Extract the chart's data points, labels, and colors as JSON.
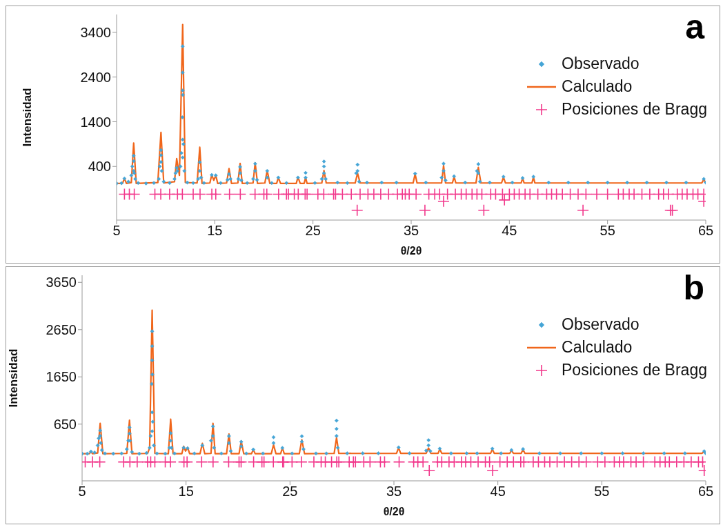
{
  "chart_data": [
    {
      "type": "scatter",
      "xlabel": "θ/2θ",
      "ylabel": "Intensidad",
      "annotations": [
        "a"
      ],
      "xlim": [
        5,
        65
      ],
      "xticks": [
        5,
        15,
        25,
        35,
        45,
        55,
        65
      ],
      "ylim": [
        -800,
        3800
      ],
      "yticks": [
        400,
        1400,
        2400,
        3400
      ],
      "legend": "top right",
      "grid": false,
      "series": [
        {
          "name": "Observado",
          "marker": "diamond",
          "color": "#45a5d6",
          "x": [
            5,
            5.5,
            5.8,
            6.2,
            6.5,
            6.6,
            6.74,
            6.74,
            6.74,
            6.8,
            6.9,
            7.2,
            8,
            8.8,
            9.3,
            9.4,
            9.52,
            9.52,
            9.52,
            9.6,
            9.8,
            10.4,
            10.9,
            11.0,
            11.12,
            11.2,
            11.5,
            11.6,
            11.7,
            11.73,
            11.73,
            11.73,
            11.73,
            11.73,
            11.75,
            11.8,
            11.9,
            12.2,
            12.8,
            13.3,
            13.47,
            13.47,
            13.6,
            13.9,
            14.69,
            15.1,
            15.6,
            16.3,
            16.45,
            16.6,
            17.4,
            17.58,
            17.58,
            17.7,
            18.3,
            18.9,
            19.11,
            19.11,
            19.3,
            20.34,
            20.34,
            20.8,
            21.47,
            22.3,
            23.47,
            24.25,
            24.25,
            25.2,
            25.9,
            26.12,
            26.12,
            26.12,
            26.3,
            27.5,
            28.5,
            29.4,
            29.54,
            29.54,
            29.7,
            30.5,
            32,
            33.5,
            35.4,
            36.5,
            38.1,
            38.3,
            38.3,
            38.5,
            39.37,
            40.5,
            41.7,
            41.84,
            41.84,
            42,
            43,
            44.4,
            45.3,
            46.35,
            47.45,
            49,
            51,
            53,
            55,
            57,
            59,
            61,
            63,
            64.8,
            65
          ],
          "values": [
            20,
            25,
            130,
            60,
            200,
            400,
            638,
            520,
            300,
            250,
            120,
            30,
            20,
            30,
            120,
            400,
            765,
            650,
            500,
            300,
            60,
            30,
            120,
            250,
            368,
            300,
            400,
            700,
            1500,
            3087,
            2500,
            2100,
            1000,
            600,
            2000,
            900,
            300,
            40,
            30,
            120,
            495,
            300,
            150,
            30,
            210,
            200,
            30,
            100,
            230,
            120,
            120,
            390,
            250,
            90,
            30,
            120,
            460,
            300,
            100,
            300,
            150,
            30,
            150,
            30,
            150,
            257,
            150,
            30,
            120,
            511,
            400,
            250,
            120,
            40,
            30,
            250,
            440,
            300,
            60,
            40,
            40,
            40,
            240,
            40,
            150,
            463,
            300,
            90,
            180,
            40,
            300,
            452,
            250,
            60,
            40,
            170,
            40,
            140,
            170,
            40,
            40,
            40,
            40,
            40,
            40,
            40,
            40,
            120,
            40
          ]
        },
        {
          "name": "Calculado",
          "type": "line",
          "marker": "none",
          "color": "#f0661b",
          "x": [
            5,
            5.6,
            5.8,
            6.0,
            6.5,
            6.74,
            7.0,
            9.2,
            9.52,
            9.8,
            10.9,
            11.12,
            11.4,
            11.73,
            12.0,
            13.2,
            13.47,
            13.7,
            14.5,
            14.69,
            14.9,
            15.1,
            15.3,
            16.2,
            16.45,
            16.7,
            17.35,
            17.58,
            17.8,
            18.9,
            19.11,
            19.35,
            20.1,
            20.34,
            20.6,
            21.3,
            21.47,
            21.7,
            23.3,
            23.47,
            23.7,
            24.1,
            24.25,
            24.4,
            25.9,
            26.12,
            26.35,
            29.3,
            29.54,
            29.8,
            35.2,
            35.4,
            35.6,
            38.1,
            38.3,
            38.5,
            39.2,
            39.37,
            39.55,
            41.6,
            41.84,
            42.1,
            44.2,
            44.4,
            44.6,
            46.2,
            46.35,
            46.5,
            47.3,
            47.45,
            47.6,
            64.6,
            64.8,
            65
          ],
          "values": [
            20,
            20,
            130,
            20,
            40,
            924,
            20,
            40,
            1162,
            30,
            60,
            575,
            200,
            3574,
            40,
            30,
            829,
            20,
            30,
            214,
            90,
            200,
            20,
            30,
            352,
            20,
            30,
            469,
            20,
            30,
            480,
            20,
            30,
            310,
            20,
            20,
            150,
            20,
            20,
            160,
            20,
            20,
            150,
            20,
            30,
            310,
            30,
            30,
            250,
            30,
            30,
            230,
            30,
            30,
            420,
            30,
            30,
            170,
            30,
            30,
            380,
            30,
            30,
            160,
            30,
            30,
            140,
            30,
            30,
            160,
            30,
            30,
            110,
            30
          ]
        },
        {
          "name": "Posiciones de Bragg",
          "type": "scatter",
          "marker": "cross",
          "color": "#f2388c",
          "x": [
            5.8,
            6.3,
            6.8,
            8.9,
            9.5,
            10.4,
            11.2,
            11.7,
            12.8,
            13.5,
            14.7,
            15.1,
            16.5,
            17.6,
            19.1,
            20.0,
            20.3,
            21.5,
            22.3,
            22.5,
            23.1,
            23.5,
            24.2,
            24.4,
            25.5,
            26.1,
            27.1,
            27.3,
            28.0,
            28.9,
            29.8,
            30.6,
            31.2,
            31.9,
            32.7,
            33.6,
            34.1,
            34.4,
            34.8,
            35.5,
            36.8,
            37.4,
            37.9,
            38.7,
            39.5,
            40.1,
            40.6,
            41.2,
            41.7,
            42.2,
            43.1,
            43.6,
            44.3,
            45.0,
            45.5,
            46.0,
            46.6,
            47.1,
            47.9,
            48.8,
            49.3,
            49.8,
            50.4,
            51.2,
            52.0,
            52.8,
            53.9,
            55.0,
            56.1,
            56.6,
            57.2,
            57.7,
            58.5,
            59.3,
            60.2,
            60.7,
            61.2,
            62.1,
            62.6,
            63.1,
            63.7,
            64.2,
            64.8,
            29.5,
            36.4,
            38.3,
            42.4,
            44.5,
            52.5,
            61.4,
            61.6,
            64.8
          ],
          "values": [
            -220,
            -220,
            -220,
            -220,
            -220,
            -220,
            -220,
            -220,
            -220,
            -220,
            -220,
            -220,
            -220,
            -220,
            -220,
            -220,
            -220,
            -220,
            -220,
            -220,
            -220,
            -220,
            -220,
            -220,
            -220,
            -220,
            -220,
            -220,
            -220,
            -220,
            -220,
            -220,
            -220,
            -220,
            -220,
            -220,
            -220,
            -220,
            -220,
            -220,
            -220,
            -220,
            -220,
            -220,
            -220,
            -220,
            -220,
            -220,
            -220,
            -220,
            -220,
            -220,
            -220,
            -220,
            -220,
            -220,
            -220,
            -220,
            -220,
            -220,
            -220,
            -220,
            -220,
            -220,
            -220,
            -220,
            -220,
            -220,
            -220,
            -220,
            -220,
            -220,
            -220,
            -220,
            -220,
            -220,
            -220,
            -220,
            -220,
            -220,
            -220,
            -220,
            -220,
            -580,
            -580,
            -380,
            -580,
            -350,
            -580,
            -580,
            -580,
            -380
          ]
        }
      ]
    },
    {
      "type": "scatter",
      "xlabel": "θ/2θ",
      "ylabel": "Intensidad",
      "annotations": [
        "b"
      ],
      "xlim": [
        5,
        65
      ],
      "xticks": [
        5,
        15,
        25,
        35,
        45,
        55,
        65
      ],
      "ylim": [
        -550,
        3800
      ],
      "yticks": [
        650,
        1650,
        2650,
        3650
      ],
      "legend": "top right",
      "grid": false,
      "series": [
        {
          "name": "Observado",
          "marker": "diamond",
          "color": "#45a5d6",
          "x": [
            5,
            5.5,
            5.85,
            6.2,
            6.5,
            6.6,
            6.74,
            6.74,
            6.8,
            6.9,
            7.2,
            8,
            8.8,
            9.3,
            9.45,
            9.56,
            9.56,
            9.6,
            9.8,
            10.5,
            11.2,
            11.5,
            11.6,
            11.7,
            11.74,
            11.74,
            11.74,
            11.74,
            11.74,
            11.76,
            11.8,
            11.9,
            12.2,
            13.0,
            13.4,
            13.52,
            13.52,
            13.6,
            13.9,
            14.77,
            15.15,
            15.8,
            16.57,
            17.4,
            17.59,
            17.59,
            17.7,
            18.4,
            19.13,
            19.13,
            19.3,
            20.31,
            20.31,
            20.8,
            21.47,
            22.4,
            23.42,
            23.42,
            24.27,
            25.2,
            26.14,
            26.14,
            26.3,
            27.5,
            28.5,
            29.48,
            29.48,
            29.48,
            29.6,
            30.5,
            32,
            33.5,
            35.45,
            36.5,
            38.1,
            38.33,
            38.33,
            38.5,
            39.41,
            40.5,
            42,
            43,
            44.47,
            45.3,
            46.31,
            47.42,
            49,
            51,
            53,
            55,
            57,
            59,
            61,
            63,
            64.85,
            65
          ],
          "values": [
            25,
            25,
            70,
            50,
            200,
            350,
            516,
            400,
            250,
            100,
            30,
            25,
            30,
            120,
            300,
            581,
            450,
            300,
            60,
            25,
            40,
            150,
            400,
            1500,
            2615,
            2300,
            2000,
            900,
            500,
            1700,
            700,
            200,
            30,
            25,
            150,
            459,
            300,
            150,
            30,
            150,
            140,
            30,
            200,
            300,
            602,
            400,
            150,
            30,
            398,
            250,
            80,
            277,
            180,
            30,
            113,
            30,
            373,
            250,
            147,
            30,
            394,
            280,
            120,
            30,
            30,
            724,
            550,
            400,
            150,
            33,
            33,
            33,
            158,
            33,
            90,
            311,
            200,
            80,
            131,
            33,
            33,
            33,
            131,
            33,
            100,
            122,
            33,
            33,
            33,
            33,
            33,
            33,
            33,
            33,
            78,
            33
          ]
        },
        {
          "name": "Calculado",
          "type": "line",
          "marker": "none",
          "color": "#f0661b",
          "x": [
            5,
            5.7,
            5.85,
            6.0,
            6.5,
            6.74,
            7.0,
            9.3,
            9.56,
            9.8,
            11.3,
            11.5,
            11.74,
            12.0,
            13.3,
            13.52,
            13.75,
            14.6,
            14.77,
            14.95,
            15.15,
            15.35,
            16.35,
            16.57,
            16.8,
            17.4,
            17.59,
            17.8,
            18.9,
            19.13,
            19.35,
            20.1,
            20.31,
            20.55,
            21.3,
            21.47,
            21.65,
            23.2,
            23.42,
            23.65,
            24.1,
            24.27,
            24.45,
            25.9,
            26.14,
            26.4,
            29.25,
            29.48,
            29.7,
            35.25,
            35.45,
            35.65,
            38.1,
            38.33,
            38.55,
            39.25,
            39.41,
            39.6,
            44.3,
            44.47,
            44.65,
            46.15,
            46.31,
            46.5,
            47.25,
            47.42,
            47.6,
            64.65,
            64.85,
            65
          ],
          "values": [
            25,
            25,
            70,
            25,
            40,
            667,
            25,
            30,
            732,
            25,
            30,
            150,
            3062,
            30,
            25,
            754,
            25,
            25,
            182,
            80,
            156,
            25,
            25,
            243,
            25,
            30,
            667,
            25,
            25,
            442,
            25,
            25,
            290,
            25,
            25,
            113,
            25,
            25,
            212,
            25,
            25,
            147,
            25,
            25,
            320,
            25,
            30,
            364,
            30,
            33,
            150,
            33,
            33,
            145,
            33,
            33,
            120,
            33,
            33,
            120,
            33,
            33,
            95,
            33,
            33,
            115,
            33,
            33,
            75,
            33
          ]
        },
        {
          "name": "Posiciones de Bragg",
          "type": "scatter",
          "marker": "cross",
          "color": "#f2388c",
          "x": [
            5.3,
            6.0,
            6.7,
            9.0,
            9.6,
            10.3,
            11.3,
            11.6,
            12.0,
            13.0,
            13.5,
            14.8,
            15.1,
            16.5,
            17.6,
            19.1,
            20.1,
            20.3,
            21.5,
            22.3,
            22.5,
            23.4,
            24.3,
            24.4,
            25.2,
            26.1,
            27.3,
            28.0,
            28.4,
            29.0,
            29.5,
            29.7,
            30.7,
            31.1,
            31.3,
            32.1,
            32.7,
            33.7,
            34.1,
            35.5,
            36.9,
            37.3,
            37.8,
            39.2,
            39.6,
            40.3,
            40.8,
            41.5,
            41.9,
            42.4,
            43.1,
            43.8,
            44.2,
            45.2,
            45.9,
            46.5,
            47.2,
            47.5,
            48.4,
            48.9,
            49.5,
            50.0,
            50.7,
            51.4,
            52.1,
            52.8,
            53.5,
            54.6,
            55.3,
            56.2,
            56.7,
            57.1,
            57.8,
            58.3,
            59.0,
            60.1,
            60.6,
            61.1,
            61.5,
            62.2,
            62.9,
            63.6,
            64.3,
            64.7,
            38.4,
            44.5,
            64.85
          ],
          "values": [
            -150,
            -150,
            -150,
            -150,
            -150,
            -150,
            -150,
            -150,
            -150,
            -150,
            -150,
            -150,
            -150,
            -150,
            -150,
            -150,
            -150,
            -150,
            -150,
            -150,
            -150,
            -150,
            -150,
            -150,
            -150,
            -150,
            -150,
            -150,
            -150,
            -150,
            -150,
            -150,
            -150,
            -150,
            -150,
            -150,
            -150,
            -150,
            -150,
            -150,
            -150,
            -150,
            -150,
            -150,
            -150,
            -150,
            -150,
            -150,
            -150,
            -150,
            -150,
            -150,
            -150,
            -150,
            -150,
            -150,
            -150,
            -150,
            -150,
            -150,
            -150,
            -150,
            -150,
            -150,
            -150,
            -150,
            -150,
            -150,
            -150,
            -150,
            -150,
            -150,
            -150,
            -150,
            -150,
            -150,
            -150,
            -150,
            -150,
            -150,
            -150,
            -150,
            -150,
            -150,
            -330,
            -330,
            -330
          ]
        }
      ]
    }
  ]
}
